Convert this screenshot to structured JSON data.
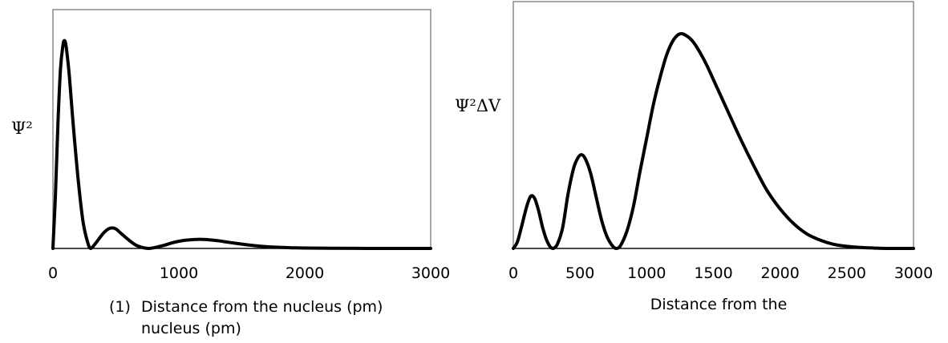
{
  "chart_data": [
    {
      "type": "line",
      "ylabel": "Ψ²",
      "xlabel_prefix": "(1)",
      "xlabel_line1": "Distance from the nucleus (pm)",
      "xlabel_line2": "nucleus (pm)",
      "xlim": [
        0,
        3000
      ],
      "ylim": [
        0,
        1.0
      ],
      "xticks": [
        0,
        1000,
        2000,
        3000
      ],
      "tick_labels": [
        "0",
        "1000",
        "2000",
        "3000"
      ],
      "grid": false,
      "series": [
        {
          "x": [
            0,
            20,
            40,
            60,
            80,
            90,
            100,
            110,
            130,
            160,
            200,
            240,
            280,
            300,
            320,
            360,
            400,
            440,
            470,
            500,
            540,
            600,
            660,
            720,
            760,
            800,
            880,
            960,
            1040,
            1120,
            1170,
            1240,
            1320,
            1400,
            1500,
            1600,
            1700,
            1800,
            1900,
            2000,
            2200,
            2500,
            2800,
            3000
          ],
          "y": [
            0,
            0.25,
            0.58,
            0.83,
            0.94,
            0.96,
            0.95,
            0.91,
            0.8,
            0.58,
            0.32,
            0.12,
            0.02,
            0.0,
            0.01,
            0.04,
            0.07,
            0.09,
            0.095,
            0.09,
            0.07,
            0.04,
            0.015,
            0.003,
            0.0,
            0.003,
            0.014,
            0.028,
            0.037,
            0.041,
            0.042,
            0.04,
            0.035,
            0.028,
            0.02,
            0.013,
            0.008,
            0.005,
            0.003,
            0.002,
            0.001,
            0.0,
            0.0,
            0.0
          ]
        }
      ]
    },
    {
      "type": "line",
      "ylabel": "Ψ²ΔV",
      "xlabel": "Distance from the",
      "xlim": [
        0,
        3000
      ],
      "ylim": [
        0,
        1.0
      ],
      "xticks": [
        0,
        500,
        1000,
        1500,
        2000,
        2500,
        3000
      ],
      "tick_labels": [
        "0",
        "500",
        "1000",
        "1500",
        "2000",
        "2500",
        "3000"
      ],
      "grid": false,
      "series": [
        {
          "x": [
            0,
            30,
            60,
            100,
            130,
            160,
            190,
            220,
            250,
            280,
            300,
            330,
            370,
            410,
            450,
            480,
            510,
            540,
            580,
            620,
            660,
            700,
            740,
            770,
            800,
            850,
            900,
            950,
            1000,
            1050,
            1100,
            1150,
            1200,
            1250,
            1300,
            1350,
            1400,
            1450,
            1500,
            1550,
            1600,
            1700,
            1800,
            1900,
            2000,
            2100,
            2200,
            2300,
            2400,
            2500,
            2600,
            2700,
            2800,
            3000
          ],
          "y": [
            0,
            0.03,
            0.1,
            0.2,
            0.25,
            0.24,
            0.18,
            0.1,
            0.04,
            0.005,
            0.0,
            0.02,
            0.1,
            0.26,
            0.38,
            0.43,
            0.45,
            0.43,
            0.36,
            0.25,
            0.14,
            0.06,
            0.015,
            0.0,
            0.01,
            0.08,
            0.2,
            0.37,
            0.53,
            0.69,
            0.82,
            0.93,
            1.0,
            1.03,
            1.02,
            0.99,
            0.94,
            0.88,
            0.81,
            0.74,
            0.67,
            0.53,
            0.4,
            0.28,
            0.19,
            0.12,
            0.07,
            0.04,
            0.02,
            0.01,
            0.005,
            0.002,
            0.0,
            0.0
          ]
        }
      ]
    }
  ]
}
